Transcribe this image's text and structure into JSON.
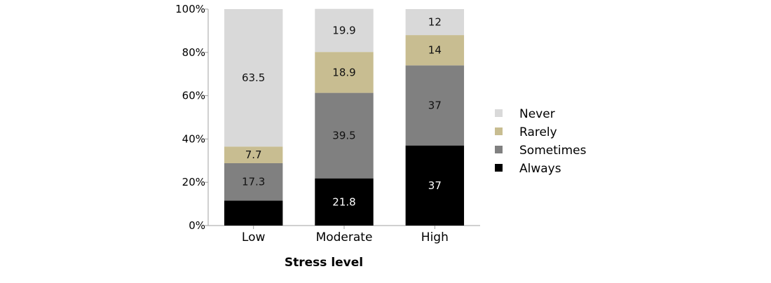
{
  "chart_data": {
    "type": "bar",
    "stacked": true,
    "normalized": true,
    "xlabel": "Stress level",
    "ylabel": "",
    "categories": [
      "Low",
      "Moderate",
      "High"
    ],
    "ylim": [
      0,
      100
    ],
    "yticks": [
      "0%",
      "20%",
      "40%",
      "60%",
      "80%",
      "100%"
    ],
    "series": [
      {
        "name": "Always",
        "values": [
          11.5,
          21.8,
          37
        ],
        "labels": [
          "",
          "21.8",
          "37"
        ],
        "color": "#000000",
        "label_color": "#ffffff"
      },
      {
        "name": "Sometimes",
        "values": [
          17.3,
          39.5,
          37
        ],
        "labels": [
          "17.3",
          "39.5",
          "37"
        ],
        "color": "#808080",
        "label_color": "#111111"
      },
      {
        "name": "Rarely",
        "values": [
          7.7,
          18.9,
          14
        ],
        "labels": [
          "7.7",
          "18.9",
          "14"
        ],
        "color": "#c8bd91",
        "label_color": "#111111"
      },
      {
        "name": "Never",
        "values": [
          63.5,
          19.9,
          12
        ],
        "labels": [
          "63.5",
          "19.9",
          "12"
        ],
        "color": "#d9d9d9",
        "label_color": "#111111"
      }
    ],
    "legend_order": [
      "Never",
      "Rarely",
      "Sometimes",
      "Always"
    ],
    "legend_position": "right",
    "grid": false
  }
}
